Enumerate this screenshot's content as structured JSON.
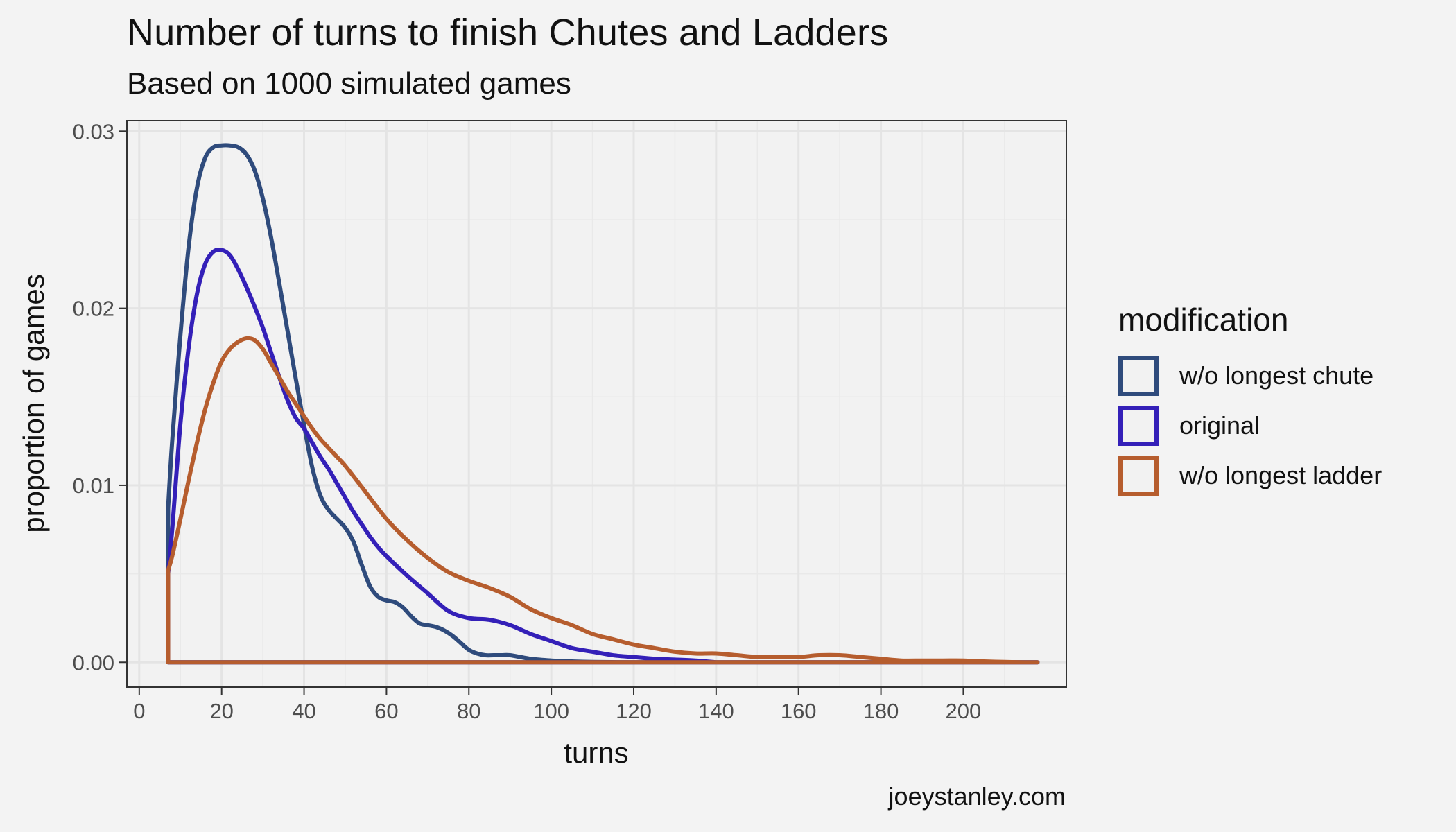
{
  "title": "Number of turns to finish Chutes and Ladders",
  "subtitle": "Based on 1000 simulated games",
  "caption": "joeystanley.com",
  "legend": {
    "title": "modification",
    "items": [
      {
        "label": "w/o longest chute",
        "color": "#2f4b7c"
      },
      {
        "label": "original",
        "color": "#3420b8"
      },
      {
        "label": "w/o longest ladder",
        "color": "#b65d2e"
      }
    ]
  },
  "chart_data": {
    "type": "area",
    "title": "Number of turns to finish Chutes and Ladders",
    "subtitle": "Based on 1000 simulated games",
    "xlabel": "turns",
    "ylabel": "proportion of games",
    "xlim": [
      -3,
      225
    ],
    "ylim": [
      -0.0014,
      0.0306
    ],
    "x_ticks": [
      0,
      20,
      40,
      60,
      80,
      100,
      120,
      140,
      160,
      180,
      200
    ],
    "y_ticks": [
      0.0,
      0.01,
      0.02,
      0.03
    ],
    "y_tick_labels": [
      "0.00",
      "0.01",
      "0.02",
      "0.03"
    ],
    "grid": true,
    "legend_position": "right",
    "series": [
      {
        "name": "w/o longest chute",
        "color": "#2f4b7c",
        "x": [
          7,
          8,
          10,
          12,
          14,
          16,
          18,
          20,
          22,
          24,
          26,
          28,
          30,
          32,
          34,
          36,
          38,
          40,
          42,
          44,
          46,
          48,
          50,
          52,
          54,
          56,
          58,
          60,
          62,
          64,
          66,
          68,
          70,
          72,
          74,
          76,
          78,
          80,
          82,
          84,
          86,
          88,
          90,
          95,
          100,
          105,
          110,
          120
        ],
        "y": [
          0.0087,
          0.0125,
          0.0185,
          0.0235,
          0.0268,
          0.0285,
          0.0291,
          0.0292,
          0.0292,
          0.0291,
          0.0287,
          0.0278,
          0.0262,
          0.024,
          0.0214,
          0.0187,
          0.016,
          0.0134,
          0.011,
          0.0094,
          0.0086,
          0.0081,
          0.0076,
          0.0068,
          0.0055,
          0.0043,
          0.0037,
          0.0035,
          0.0034,
          0.0031,
          0.0026,
          0.0022,
          0.0021,
          0.002,
          0.0018,
          0.0015,
          0.0011,
          0.0007,
          0.0005,
          0.0004,
          0.0004,
          0.0004,
          0.0004,
          0.0002,
          0.0001,
          5e-05,
          2e-05,
          0.0
        ]
      },
      {
        "name": "original",
        "color": "#3420b8",
        "x": [
          7,
          8,
          10,
          12,
          14,
          16,
          18,
          20,
          22,
          24,
          26,
          28,
          30,
          32,
          34,
          36,
          38,
          40,
          42,
          44,
          46,
          48,
          50,
          52,
          54,
          56,
          58,
          60,
          65,
          70,
          75,
          80,
          85,
          90,
          95,
          100,
          105,
          110,
          115,
          120,
          125,
          130,
          135,
          140
        ],
        "y": [
          0.005,
          0.0075,
          0.0135,
          0.0178,
          0.0208,
          0.0225,
          0.0232,
          0.0233,
          0.023,
          0.0222,
          0.0212,
          0.0201,
          0.0189,
          0.0175,
          0.0161,
          0.0148,
          0.0138,
          0.0132,
          0.0124,
          0.0116,
          0.0109,
          0.0101,
          0.0093,
          0.0085,
          0.0078,
          0.0071,
          0.0065,
          0.006,
          0.0049,
          0.0039,
          0.0029,
          0.0025,
          0.0024,
          0.0021,
          0.0016,
          0.0012,
          0.0008,
          0.0006,
          0.0004,
          0.0003,
          0.0002,
          0.00015,
          0.0001,
          0.0
        ]
      },
      {
        "name": "w/o longest ladder",
        "color": "#b65d2e",
        "x": [
          7,
          8,
          10,
          12,
          14,
          16,
          18,
          20,
          22,
          24,
          26,
          28,
          30,
          32,
          34,
          36,
          38,
          40,
          42,
          44,
          46,
          48,
          50,
          55,
          60,
          65,
          70,
          75,
          80,
          85,
          90,
          95,
          100,
          105,
          110,
          115,
          120,
          125,
          130,
          135,
          140,
          145,
          150,
          155,
          160,
          165,
          170,
          175,
          180,
          185,
          190,
          195,
          200,
          205,
          210,
          215,
          218
        ],
        "y": [
          0.0052,
          0.006,
          0.0081,
          0.0103,
          0.0124,
          0.0143,
          0.0158,
          0.017,
          0.0177,
          0.0181,
          0.0183,
          0.0182,
          0.0177,
          0.0169,
          0.0161,
          0.0153,
          0.0146,
          0.0139,
          0.0132,
          0.0126,
          0.0121,
          0.0116,
          0.0111,
          0.0096,
          0.0081,
          0.0069,
          0.0059,
          0.0051,
          0.0046,
          0.0042,
          0.0037,
          0.003,
          0.0025,
          0.0021,
          0.0016,
          0.0013,
          0.001,
          0.0008,
          0.0006,
          0.0005,
          0.0005,
          0.0004,
          0.0003,
          0.0003,
          0.0003,
          0.0004,
          0.0004,
          0.0003,
          0.0002,
          0.0001,
          0.0001,
          0.0001,
          0.0001,
          5e-05,
          2e-05,
          0.0,
          0.0
        ]
      }
    ]
  }
}
